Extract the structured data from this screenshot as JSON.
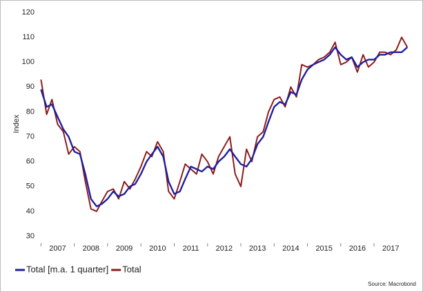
{
  "chart_data": {
    "type": "line",
    "y_label": "Index",
    "source": "Source: Macrobond",
    "x": [
      2007.0,
      2007.17,
      2007.33,
      2007.5,
      2007.67,
      2007.83,
      2008.0,
      2008.17,
      2008.33,
      2008.5,
      2008.67,
      2008.83,
      2009.0,
      2009.17,
      2009.33,
      2009.5,
      2009.67,
      2009.83,
      2010.0,
      2010.17,
      2010.33,
      2010.5,
      2010.67,
      2010.83,
      2011.0,
      2011.17,
      2011.33,
      2011.5,
      2011.67,
      2011.83,
      2012.0,
      2012.17,
      2012.33,
      2012.5,
      2012.67,
      2012.83,
      2013.0,
      2013.17,
      2013.33,
      2013.5,
      2013.67,
      2013.83,
      2014.0,
      2014.17,
      2014.33,
      2014.5,
      2014.67,
      2014.83,
      2015.0,
      2015.17,
      2015.33,
      2015.5,
      2015.67,
      2015.83,
      2016.0,
      2016.17,
      2016.33,
      2016.5,
      2016.67,
      2016.83,
      2017.0,
      2017.17,
      2017.33,
      2017.5,
      2017.67,
      2017.83,
      2018.0
    ],
    "series": [
      {
        "name": "Total [m.a. 1 quarter]",
        "color": "#1f1f9e",
        "values": [
          89,
          82,
          83,
          78,
          73,
          70,
          64,
          63,
          55,
          45,
          42,
          43,
          45,
          48,
          46,
          47,
          50,
          51,
          55,
          60,
          63,
          66,
          62,
          52,
          47,
          48,
          53,
          58,
          57,
          56,
          58,
          57,
          60,
          62,
          65,
          62,
          59,
          58,
          61,
          67,
          70,
          76,
          82,
          84,
          83,
          88,
          87,
          93,
          97,
          99,
          100,
          101,
          103,
          106,
          103,
          101,
          102,
          98,
          100,
          101,
          101,
          103,
          103,
          104,
          104,
          104,
          106
        ]
      },
      {
        "name": "Total",
        "color": "#8e1b1b",
        "values": [
          93,
          79,
          85,
          75,
          72,
          63,
          66,
          64,
          52,
          41,
          40,
          44,
          48,
          49,
          45,
          52,
          49,
          53,
          58,
          64,
          62,
          68,
          64,
          48,
          45,
          52,
          59,
          57,
          55,
          63,
          60,
          55,
          62,
          66,
          70,
          55,
          50,
          65,
          60,
          70,
          72,
          80,
          85,
          86,
          82,
          90,
          86,
          99,
          98,
          99,
          101,
          102,
          104,
          108,
          99,
          100,
          102,
          96,
          103,
          98,
          100,
          104,
          104,
          103,
          105,
          110,
          106
        ]
      }
    ],
    "xlim": [
      2006.95,
      2018.2
    ],
    "xticks": [
      {
        "value": 2007.5,
        "label": "2007"
      },
      {
        "value": 2008.5,
        "label": "2008"
      },
      {
        "value": 2009.5,
        "label": "2009"
      },
      {
        "value": 2010.5,
        "label": "2010"
      },
      {
        "value": 2011.5,
        "label": "2011"
      },
      {
        "value": 2012.5,
        "label": "2012"
      },
      {
        "value": 2013.5,
        "label": "2013"
      },
      {
        "value": 2014.5,
        "label": "2014"
      },
      {
        "value": 2015.5,
        "label": "2015"
      },
      {
        "value": 2016.5,
        "label": "2016"
      },
      {
        "value": 2017.5,
        "label": "2017"
      }
    ],
    "ylim": [
      30,
      120
    ],
    "yticks": [
      30,
      40,
      50,
      60,
      70,
      80,
      90,
      100,
      110,
      120
    ],
    "grid": false
  }
}
